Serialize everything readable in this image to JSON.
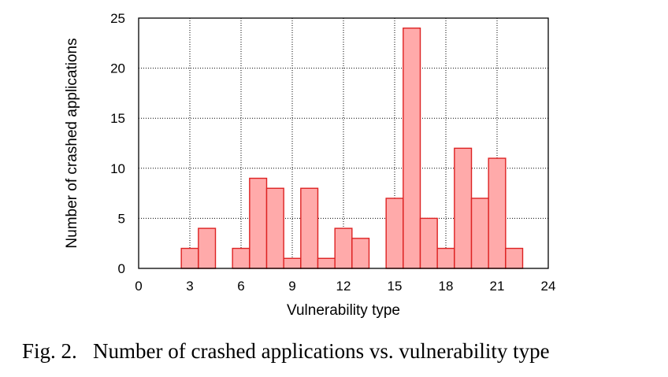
{
  "chart_data": {
    "type": "bar",
    "xlabel": "Vulnerability type",
    "ylabel": "Number of crashed applications",
    "xlim": [
      0,
      24
    ],
    "ylim": [
      0,
      25
    ],
    "xticks": [
      0,
      3,
      6,
      9,
      12,
      15,
      18,
      21,
      24
    ],
    "yticks": [
      0,
      5,
      10,
      15,
      20,
      25
    ],
    "grid": true,
    "categories": [
      3,
      4,
      6,
      7,
      8,
      9,
      10,
      11,
      12,
      13,
      15,
      16,
      17,
      18,
      19,
      20,
      21,
      22
    ],
    "values": [
      2,
      4,
      2,
      9,
      8,
      1,
      8,
      1,
      4,
      3,
      7,
      24,
      5,
      2,
      12,
      7,
      11,
      2
    ],
    "bar_fill": "#ffaaaa",
    "bar_edge": "#dd2222"
  },
  "caption": "Fig. 2.   Number of crashed applications vs. vulnerability type"
}
